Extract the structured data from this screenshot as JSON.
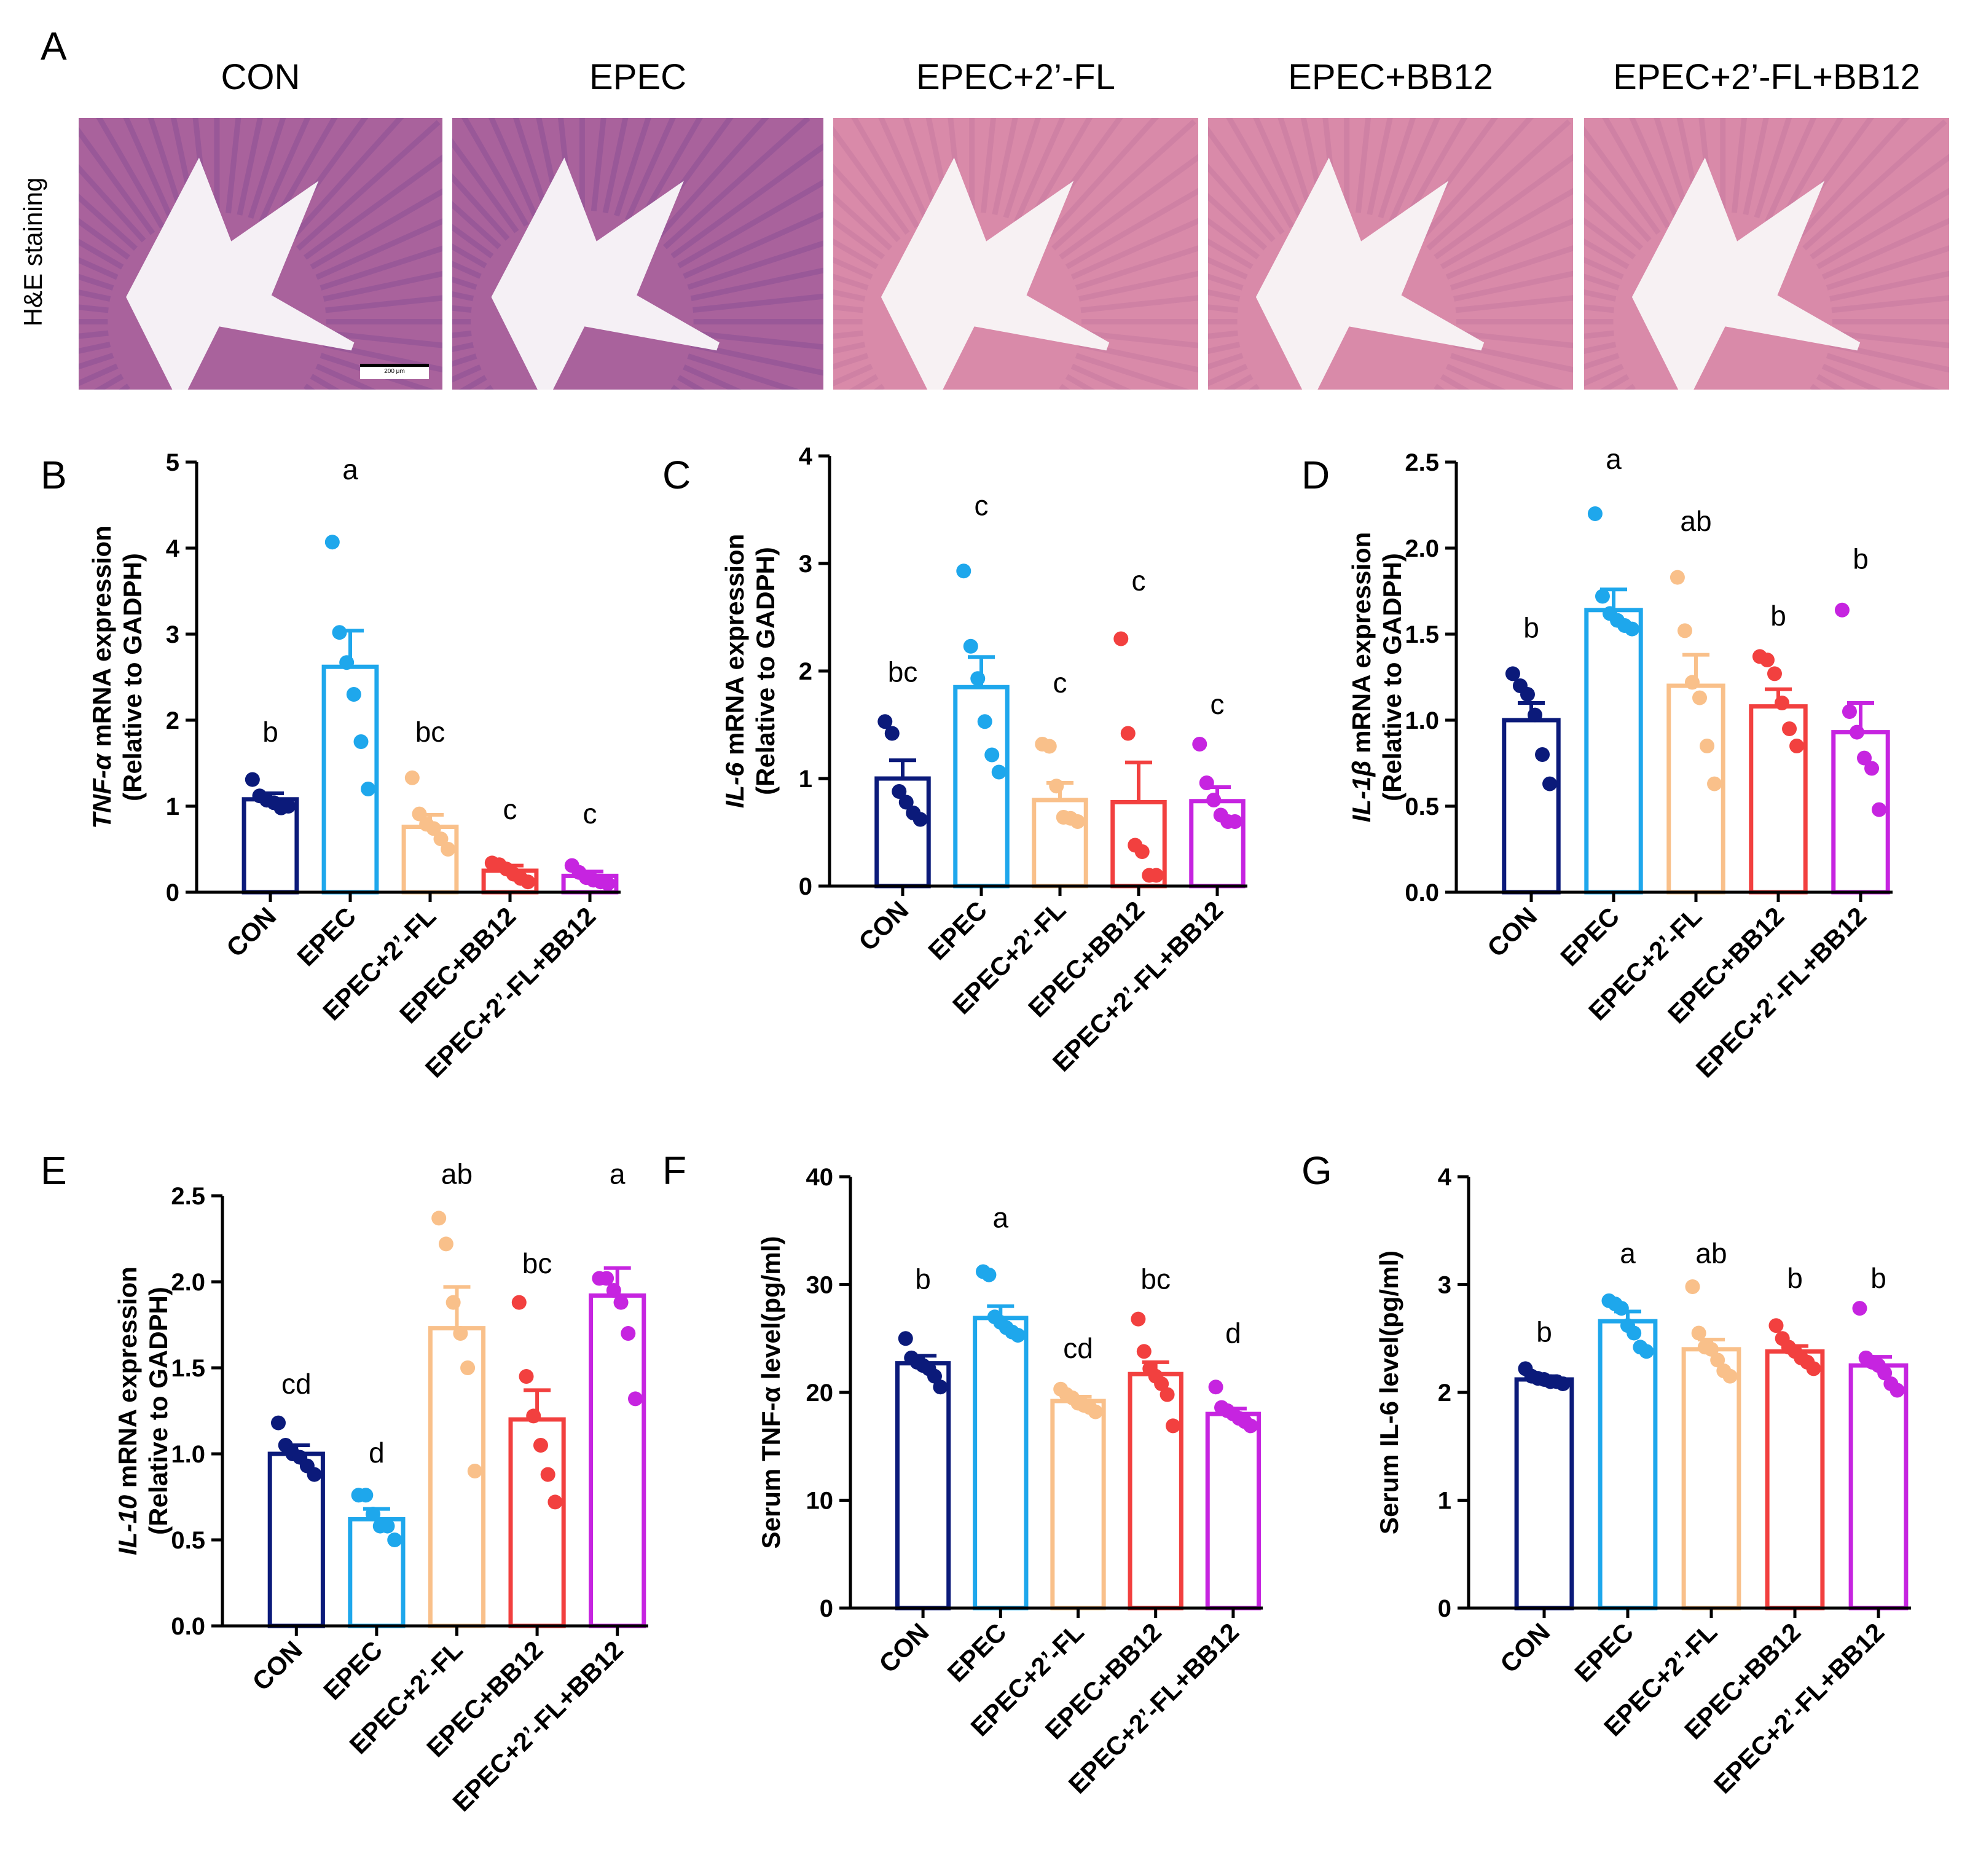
{
  "panel_a": {
    "letter": "A",
    "side_label": "H&E staining",
    "scale_bar_label": "200 μm",
    "images": [
      {
        "title": "CON"
      },
      {
        "title": "EPEC"
      },
      {
        "title": "EPEC+2’-FL"
      },
      {
        "title": "EPEC+BB12"
      },
      {
        "title": "EPEC+2’-FL+BB12"
      }
    ]
  },
  "colors": [
    "#0b1a7a",
    "#1ea7ec",
    "#f9c08a",
    "#f2403f",
    "#c624e0"
  ],
  "chart_data": [
    {
      "letter": "B",
      "type": "bar",
      "ylabel_italic": "TNF-α",
      "ylabel_rest": " mRNA expression",
      "ylabel_line2": "(Relative to GADPH)",
      "categories": [
        "CON",
        "EPEC",
        "EPEC+2’-FL",
        "EPEC+BB12",
        "EPEC+2’-FL+BB12"
      ],
      "ylim": [
        0,
        5
      ],
      "yticks": [
        "0",
        "1",
        "2",
        "3",
        "4",
        "5"
      ],
      "values": [
        1.08,
        2.62,
        0.76,
        0.25,
        0.19
      ],
      "sem": [
        0.07,
        0.42,
        0.14,
        0.06,
        0.05
      ],
      "points": [
        [
          1.31,
          1.12,
          1.07,
          1.04,
          0.98,
          1.0
        ],
        [
          4.07,
          3.02,
          2.67,
          2.3,
          1.75,
          1.2
        ],
        [
          1.33,
          0.91,
          0.79,
          0.74,
          0.62,
          0.5
        ],
        [
          0.34,
          0.32,
          0.27,
          0.21,
          0.16,
          0.12
        ],
        [
          0.31,
          0.23,
          0.17,
          0.14,
          0.12,
          0.1
        ]
      ],
      "significance": [
        "b",
        "a",
        "bc",
        "c",
        "c"
      ],
      "sig_y": [
        1.75,
        4.8,
        1.75,
        0.85,
        0.8
      ]
    },
    {
      "letter": "C",
      "type": "bar",
      "ylabel_italic": "IL-6",
      "ylabel_rest": " mRNA expression",
      "ylabel_line2": "(Relative to GADPH)",
      "categories": [
        "CON",
        "EPEC",
        "EPEC+2’-FL",
        "EPEC+BB12",
        "EPEC+2’-FL+BB12"
      ],
      "ylim": [
        0,
        4
      ],
      "yticks": [
        "0",
        "1",
        "2",
        "3",
        "4"
      ],
      "values": [
        1.0,
        1.85,
        0.8,
        0.78,
        0.79
      ],
      "sem": [
        0.17,
        0.28,
        0.16,
        0.37,
        0.13
      ],
      "points": [
        [
          1.53,
          1.42,
          0.88,
          0.78,
          0.68,
          0.62
        ],
        [
          2.93,
          2.23,
          1.93,
          1.53,
          1.22,
          1.06
        ],
        [
          1.32,
          1.3,
          0.93,
          0.64,
          0.63,
          0.6
        ],
        [
          2.3,
          1.42,
          0.38,
          0.32,
          0.1,
          0.1
        ],
        [
          1.32,
          0.96,
          0.8,
          0.66,
          0.6,
          0.6
        ]
      ],
      "significance": [
        "bc",
        "c",
        "c",
        "c",
        "c"
      ],
      "sig_y": [
        1.9,
        3.45,
        1.8,
        2.75,
        1.6
      ]
    },
    {
      "letter": "D",
      "type": "bar",
      "ylabel_italic": "IL-1β",
      "ylabel_rest": " mRNA expression",
      "ylabel_line2": "(Relative to GADPH)",
      "categories": [
        "CON",
        "EPEC",
        "EPEC+2’-FL",
        "EPEC+BB12",
        "EPEC+2’-FL+BB12"
      ],
      "ylim": [
        0,
        2.5
      ],
      "yticks": [
        "0.0",
        "0.5",
        "1.0",
        "1.5",
        "2.0",
        "2.5"
      ],
      "values": [
        1.0,
        1.64,
        1.2,
        1.08,
        0.93
      ],
      "sem": [
        0.1,
        0.12,
        0.18,
        0.1,
        0.17
      ],
      "points": [
        [
          1.27,
          1.2,
          1.15,
          1.03,
          0.8,
          0.63
        ],
        [
          2.2,
          1.72,
          1.62,
          1.58,
          1.55,
          1.53
        ],
        [
          1.83,
          1.52,
          1.22,
          1.13,
          0.85,
          0.63
        ],
        [
          1.37,
          1.35,
          1.27,
          1.1,
          0.95,
          0.85
        ],
        [
          1.64,
          1.05,
          0.93,
          0.78,
          0.72,
          0.48
        ]
      ],
      "significance": [
        "b",
        "a",
        "ab",
        "b",
        "b"
      ],
      "sig_y": [
        1.48,
        2.46,
        2.1,
        1.55,
        1.88
      ]
    },
    {
      "letter": "E",
      "type": "bar",
      "ylabel_italic": "IL-10",
      "ylabel_rest": " mRNA expression",
      "ylabel_line2": "(Relative to GADPH)",
      "categories": [
        "CON",
        "EPEC",
        "EPEC+2’-FL",
        "EPEC+BB12",
        "EPEC+2’-FL+BB12"
      ],
      "ylim": [
        0,
        2.5
      ],
      "yticks": [
        "0.0",
        "0.5",
        "1.0",
        "1.5",
        "2.0",
        "2.5"
      ],
      "values": [
        1.0,
        0.62,
        1.73,
        1.2,
        1.92
      ],
      "sem": [
        0.05,
        0.06,
        0.24,
        0.17,
        0.16
      ],
      "points": [
        [
          1.18,
          1.05,
          1.0,
          0.98,
          0.93,
          0.88
        ],
        [
          0.76,
          0.76,
          0.65,
          0.58,
          0.58,
          0.5
        ],
        [
          2.37,
          2.22,
          1.88,
          1.7,
          1.5,
          0.9
        ],
        [
          1.88,
          1.45,
          1.22,
          1.05,
          0.88,
          0.72
        ],
        [
          2.02,
          2.02,
          1.95,
          1.88,
          1.7,
          1.32
        ]
      ],
      "significance": [
        "cd",
        "d",
        "ab",
        "bc",
        "a"
      ],
      "sig_y": [
        1.35,
        0.95,
        2.57,
        2.05,
        2.57
      ]
    },
    {
      "letter": "F",
      "type": "bar",
      "ylabel_italic": "",
      "ylabel_rest": "Serum TNF-α level(pg/ml)",
      "ylabel_line2": "",
      "categories": [
        "CON",
        "EPEC",
        "EPEC+2’-FL",
        "EPEC+BB12",
        "EPEC+2’-FL+BB12"
      ],
      "ylim": [
        0,
        40
      ],
      "yticks": [
        "0",
        "10",
        "20",
        "30",
        "40"
      ],
      "values": [
        22.7,
        26.9,
        19.2,
        21.7,
        18.0
      ],
      "sem": [
        0.7,
        1.1,
        0.4,
        1.1,
        0.5
      ],
      "points": [
        [
          25.0,
          23.2,
          22.8,
          22.5,
          22.2,
          21.5,
          20.5
        ],
        [
          31.2,
          30.9,
          27.0,
          26.5,
          26.0,
          25.6,
          25.3
        ],
        [
          20.3,
          19.8,
          19.5,
          19.0,
          18.8,
          18.6,
          18.2
        ],
        [
          26.8,
          23.8,
          22.2,
          21.5,
          20.8,
          19.8,
          16.9
        ],
        [
          20.5,
          18.6,
          18.3,
          18.0,
          17.6,
          17.3,
          16.9
        ]
      ],
      "significance": [
        "b",
        "a",
        "cd",
        "bc",
        "d"
      ],
      "sig_y": [
        29.6,
        35.3,
        23.2,
        29.6,
        24.6
      ]
    },
    {
      "letter": "G",
      "type": "bar",
      "ylabel_italic": "",
      "ylabel_rest": "Serum IL-6 level(pg/ml)",
      "ylabel_line2": "",
      "categories": [
        "CON",
        "EPEC",
        "EPEC+2’-FL",
        "EPEC+BB12",
        "EPEC+2’-FL+BB12"
      ],
      "ylim": [
        0,
        4
      ],
      "yticks": [
        "0",
        "1",
        "2",
        "3",
        "4"
      ],
      "values": [
        2.12,
        2.66,
        2.4,
        2.38,
        2.25
      ],
      "sem": [
        0.03,
        0.09,
        0.09,
        0.05,
        0.08
      ],
      "points": [
        [
          2.22,
          2.15,
          2.13,
          2.12,
          2.1,
          2.1,
          2.08
        ],
        [
          2.85,
          2.82,
          2.78,
          2.62,
          2.55,
          2.42,
          2.38
        ],
        [
          2.98,
          2.55,
          2.42,
          2.4,
          2.3,
          2.2,
          2.15
        ],
        [
          2.62,
          2.5,
          2.42,
          2.38,
          2.32,
          2.28,
          2.22
        ],
        [
          2.78,
          2.32,
          2.28,
          2.25,
          2.18,
          2.08,
          2.02
        ]
      ],
      "significance": [
        "b",
        "a",
        "ab",
        "b",
        "b"
      ],
      "sig_y": [
        2.47,
        3.2,
        3.2,
        2.97,
        2.97
      ]
    }
  ]
}
